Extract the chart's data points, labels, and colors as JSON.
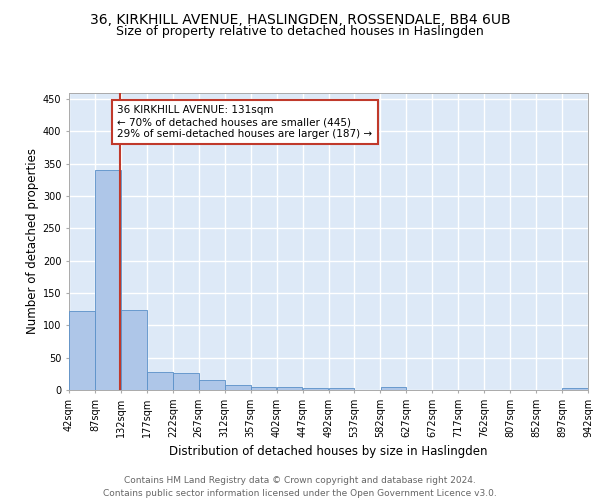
{
  "title": "36, KIRKHILL AVENUE, HASLINGDEN, ROSSENDALE, BB4 6UB",
  "subtitle": "Size of property relative to detached houses in Haslingden",
  "xlabel": "Distribution of detached houses by size in Haslingden",
  "ylabel": "Number of detached properties",
  "bin_edges": [
    42,
    87,
    132,
    177,
    222,
    267,
    312,
    357,
    402,
    447,
    492,
    537,
    582,
    627,
    672,
    717,
    762,
    807,
    852,
    897,
    942
  ],
  "bar_heights": [
    122,
    340,
    124,
    28,
    27,
    16,
    8,
    5,
    4,
    3,
    3,
    0,
    4,
    0,
    0,
    0,
    0,
    0,
    0,
    3
  ],
  "bar_color": "#aec6e8",
  "bar_edge_color": "#5a90c8",
  "property_size": 131,
  "property_line_color": "#c0392b",
  "annotation_text": "36 KIRKHILL AVENUE: 131sqm\n← 70% of detached houses are smaller (445)\n29% of semi-detached houses are larger (187) →",
  "annotation_box_color": "white",
  "annotation_box_edge_color": "#c0392b",
  "footer_text": "Contains HM Land Registry data © Crown copyright and database right 2024.\nContains public sector information licensed under the Open Government Licence v3.0.",
  "tick_labels": [
    "42sqm",
    "87sqm",
    "132sqm",
    "177sqm",
    "222sqm",
    "267sqm",
    "312sqm",
    "357sqm",
    "402sqm",
    "447sqm",
    "492sqm",
    "537sqm",
    "582sqm",
    "627sqm",
    "672sqm",
    "717sqm",
    "762sqm",
    "807sqm",
    "852sqm",
    "897sqm",
    "942sqm"
  ],
  "ylim": [
    0,
    460
  ],
  "yticks": [
    0,
    50,
    100,
    150,
    200,
    250,
    300,
    350,
    400,
    450
  ],
  "background_color": "#dde9f7",
  "grid_color": "white",
  "title_fontsize": 10,
  "subtitle_fontsize": 9,
  "axis_label_fontsize": 8.5,
  "tick_fontsize": 7,
  "footer_fontsize": 6.5,
  "annotation_fontsize": 7.5
}
